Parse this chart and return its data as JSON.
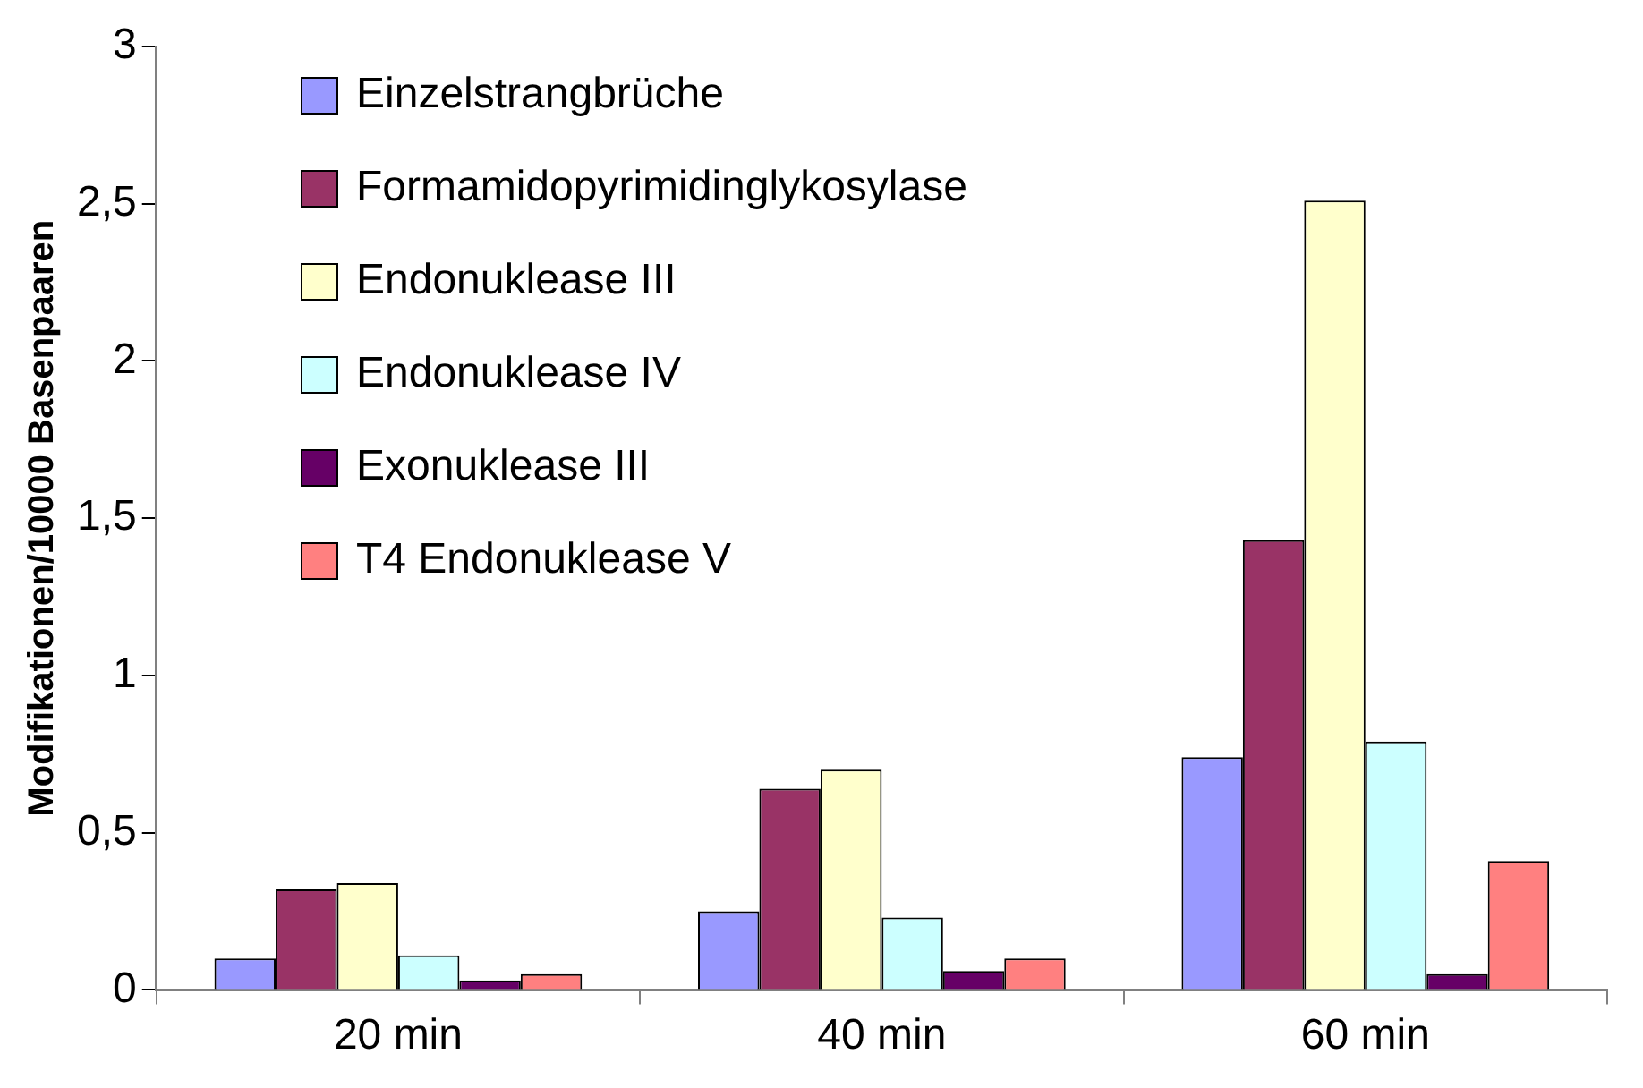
{
  "chart_data": {
    "type": "bar",
    "ylabel": "Modifikationen/10000 Basenpaaren",
    "categories": [
      "20 min",
      "40 min",
      "60 min"
    ],
    "series": [
      {
        "name": "Einzelstrangbrüche",
        "color": "#9999ff",
        "values": [
          0.1,
          0.25,
          0.74
        ]
      },
      {
        "name": "Formamidopyrimidinglykosylase",
        "color": "#993366",
        "values": [
          0.32,
          0.64,
          1.43
        ]
      },
      {
        "name": "Endonuklease III",
        "color": "#ffffcc",
        "values": [
          0.34,
          0.7,
          2.51
        ]
      },
      {
        "name": "Endonuklease IV",
        "color": "#ccffff",
        "values": [
          0.11,
          0.23,
          0.79
        ]
      },
      {
        "name": "Exonuklease III",
        "color": "#660066",
        "values": [
          0.03,
          0.06,
          0.05
        ]
      },
      {
        "name": "T4 Endonuklease V",
        "color": "#ff8080",
        "values": [
          0.05,
          0.1,
          0.41
        ]
      }
    ],
    "ylim": [
      0,
      3
    ],
    "yticks": [
      0,
      {
        "value": 0.5,
        "label": "0,5"
      },
      1,
      {
        "value": 1.5,
        "label": "1,5"
      },
      2,
      {
        "value": 2.5,
        "label": "2,5"
      },
      3
    ],
    "grid": false,
    "legend": "top left"
  }
}
